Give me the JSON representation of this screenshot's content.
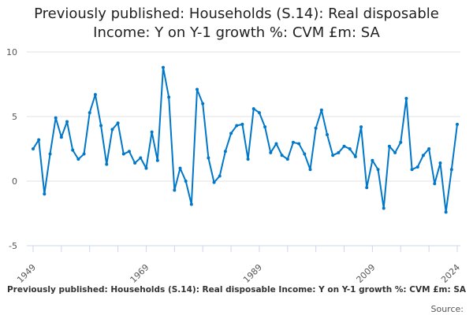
{
  "chart_data": {
    "type": "line",
    "title": "Previously published: Households (S.14): Real disposable Income: Y on Y-1 growth %: CVM £m: SA",
    "xlabel": "",
    "ylabel": "",
    "x_start": 1949,
    "x_end": 2024,
    "x_ticks_labeled": [
      "1949",
      "1969",
      "1989",
      "2009",
      "2024"
    ],
    "y_ticks": [
      "10",
      "5",
      "0",
      "-5"
    ],
    "ylim": [
      -5,
      10
    ],
    "grid": true,
    "color": "#0077c8",
    "values": [
      2.5,
      3.2,
      -1.0,
      2.1,
      4.9,
      3.4,
      4.6,
      2.4,
      1.7,
      2.1,
      5.3,
      6.7,
      4.3,
      1.3,
      4.0,
      4.5,
      2.1,
      2.3,
      1.4,
      1.8,
      1.0,
      3.8,
      1.6,
      8.8,
      6.5,
      -0.7,
      1.0,
      0.0,
      -1.8,
      7.1,
      6.0,
      1.8,
      -0.1,
      0.4,
      2.3,
      3.7,
      4.3,
      4.4,
      1.7,
      5.6,
      5.3,
      4.2,
      2.2,
      2.9,
      2.0,
      1.7,
      3.0,
      2.9,
      2.1,
      0.9,
      4.1,
      5.5,
      3.6,
      2.0,
      2.2,
      2.7,
      2.5,
      1.9,
      4.2,
      -0.5,
      1.6,
      0.9,
      -2.1,
      2.7,
      2.2,
      3.0,
      6.4,
      0.9,
      1.1,
      2.0,
      2.5,
      -0.2,
      1.4,
      -2.4,
      0.9,
      4.4
    ]
  },
  "title_line1": "Previously published: Households (S.14): Real disposable",
  "title_line2": "Income: Y on Y-1 growth %: CVM £m: SA",
  "caption": "Previously published: Households (S.14): Real disposable Income: Y on Y-1 growth %: CVM £m: SA",
  "source_label": "Source:"
}
